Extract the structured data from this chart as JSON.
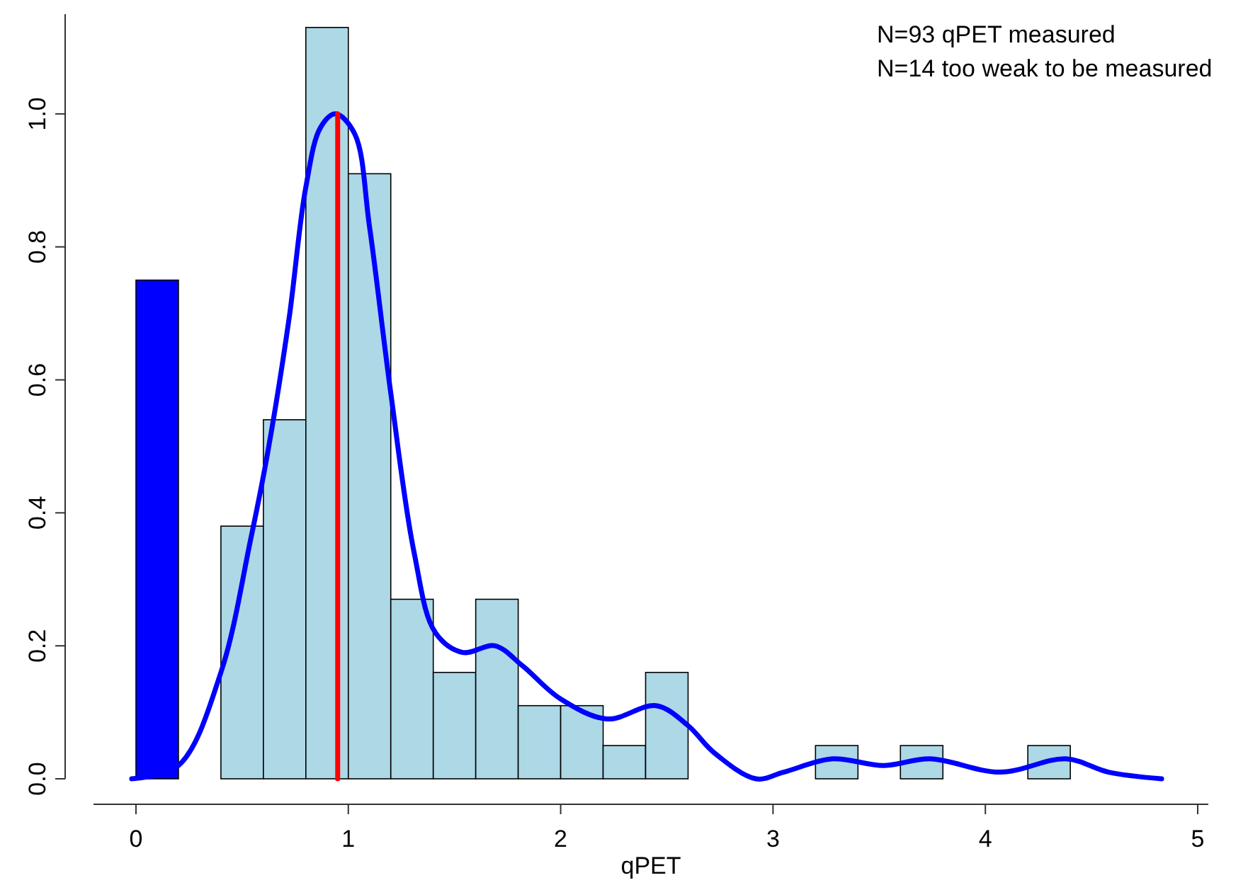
{
  "chart_data": {
    "type": "histogram",
    "xlabel": "qPET",
    "annotations": [
      "N=93 qPET measured",
      "N=14 too weak to be measured"
    ],
    "xlim": [
      -0.2,
      5.05
    ],
    "ylim": [
      0,
      1.15
    ],
    "xticks": [
      0,
      1,
      2,
      3,
      4,
      5
    ],
    "yticks": [
      {
        "value": 0,
        "label": "0.0"
      },
      0.2,
      0.4,
      0.6,
      0.8,
      {
        "value": 1,
        "label": "1.0"
      }
    ],
    "series": [
      {
        "type": "histogram",
        "bins": [
          0,
          0.2,
          0.4,
          0.6,
          0.8,
          1.0,
          1.2,
          1.4,
          1.6,
          1.8,
          2.0,
          2.2,
          2.4,
          2.6,
          2.8,
          3.0,
          3.2,
          3.4,
          3.6,
          3.8,
          4.0,
          4.2,
          4.4
        ],
        "values": [
          0.75,
          0,
          0.38,
          0.54,
          1.13,
          0.91,
          0.27,
          0.16,
          0.27,
          0.11,
          0.11,
          0.05,
          0.16,
          0,
          0,
          0,
          0.05,
          0,
          0.05,
          0,
          0,
          0.05
        ],
        "colors": [
          "#0000ff",
          "#add8e6",
          "#add8e6",
          "#add8e6",
          "#add8e6",
          "#add8e6",
          "#add8e6",
          "#add8e6",
          "#add8e6",
          "#add8e6",
          "#add8e6",
          "#add8e6",
          "#add8e6",
          "#add8e6",
          "#add8e6",
          "#add8e6",
          "#add8e6",
          "#add8e6",
          "#add8e6",
          "#add8e6",
          "#add8e6",
          "#add8e6"
        ]
      },
      {
        "type": "line",
        "color": "#0000ff",
        "x": [
          -0.02,
          0.2,
          0.4,
          0.54,
          0.62,
          0.72,
          0.8,
          0.87,
          0.94,
          1.03,
          1.1,
          1.2,
          1.31,
          1.41,
          1.54,
          1.69,
          1.82,
          2.0,
          2.22,
          2.45,
          2.6,
          2.72,
          2.92,
          3.05,
          3.28,
          3.52,
          3.74,
          4.07,
          4.38,
          4.58,
          4.83
        ],
        "values": [
          0,
          0.02,
          0.16,
          0.36,
          0.49,
          0.69,
          0.89,
          0.98,
          1.0,
          0.97,
          0.83,
          0.58,
          0.34,
          0.22,
          0.19,
          0.2,
          0.17,
          0.12,
          0.09,
          0.11,
          0.08,
          0.04,
          0,
          0.01,
          0.03,
          0.02,
          0.03,
          0.01,
          0.03,
          0.01,
          0
        ]
      },
      {
        "type": "line",
        "color": "#ff0000",
        "x": [
          0.95,
          0.95
        ],
        "values": [
          0,
          1.0
        ]
      }
    ]
  }
}
